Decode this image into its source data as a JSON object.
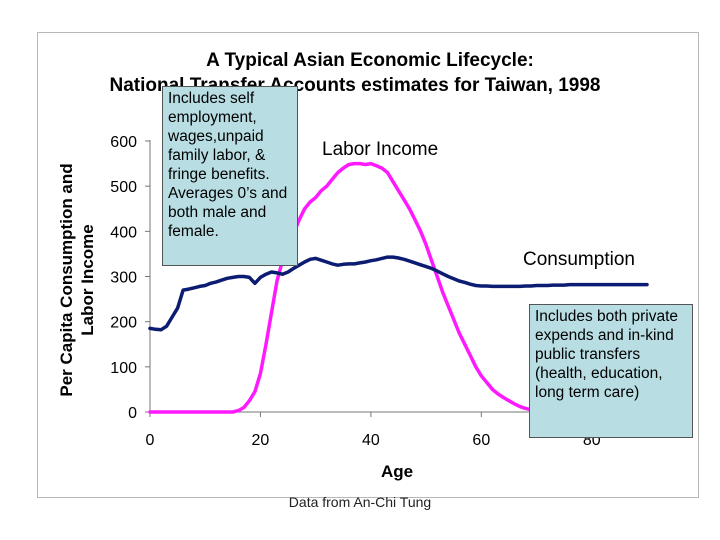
{
  "chart_data": {
    "type": "line",
    "title": "A Typical Asian Economic Lifecycle:",
    "subtitle": "National Transfer Accounts estimates for Taiwan, 1998",
    "xlabel": "Age",
    "ylabel_line1": "Per Capita Consumption and",
    "ylabel_line2": "Labor Income",
    "xlim": [
      0,
      90
    ],
    "ylim": [
      0,
      600
    ],
    "xticks": [
      0,
      20,
      40,
      60,
      80
    ],
    "yticks": [
      0,
      100,
      200,
      300,
      400,
      500,
      600
    ],
    "x": [
      0,
      1,
      2,
      3,
      4,
      5,
      6,
      7,
      8,
      9,
      10,
      11,
      12,
      13,
      14,
      15,
      16,
      17,
      18,
      19,
      20,
      21,
      22,
      23,
      24,
      25,
      26,
      27,
      28,
      29,
      30,
      31,
      32,
      33,
      34,
      35,
      36,
      37,
      38,
      39,
      40,
      41,
      42,
      43,
      44,
      45,
      46,
      47,
      48,
      49,
      50,
      51,
      52,
      53,
      54,
      55,
      56,
      57,
      58,
      59,
      60,
      61,
      62,
      63,
      64,
      65,
      66,
      67,
      68,
      69,
      70,
      71,
      72,
      73,
      74,
      75,
      76,
      77,
      78,
      79,
      80,
      81,
      82,
      83,
      84,
      85,
      86,
      87,
      88,
      89,
      90
    ],
    "series": [
      {
        "name": "Labor Income",
        "label": "Labor Income",
        "color": "#ff19ff",
        "values": [
          0,
          0,
          0,
          0,
          0,
          0,
          0,
          0,
          0,
          0,
          0,
          0,
          0,
          0,
          0,
          0,
          3,
          10,
          25,
          45,
          85,
          150,
          220,
          290,
          335,
          370,
          395,
          425,
          450,
          465,
          475,
          490,
          500,
          515,
          530,
          540,
          548,
          550,
          550,
          548,
          550,
          545,
          540,
          530,
          510,
          490,
          470,
          450,
          425,
          400,
          370,
          335,
          300,
          265,
          235,
          205,
          175,
          150,
          125,
          100,
          80,
          65,
          50,
          40,
          32,
          25,
          18,
          12,
          8,
          5,
          2,
          0,
          0,
          0,
          0,
          0,
          0,
          0,
          0,
          0,
          0,
          0,
          0,
          0,
          0,
          0,
          0,
          0,
          0,
          0,
          0
        ]
      },
      {
        "name": "Consumption",
        "label": "Consumption",
        "color": "#0d1c73",
        "values": [
          185,
          183,
          182,
          190,
          210,
          230,
          270,
          272,
          275,
          278,
          280,
          285,
          288,
          292,
          296,
          298,
          300,
          300,
          298,
          285,
          298,
          305,
          310,
          308,
          305,
          310,
          318,
          325,
          332,
          338,
          340,
          336,
          332,
          328,
          325,
          327,
          328,
          328,
          330,
          332,
          335,
          337,
          340,
          343,
          343,
          341,
          338,
          334,
          330,
          326,
          322,
          318,
          312,
          306,
          300,
          295,
          290,
          287,
          283,
          280,
          279,
          279,
          278,
          278,
          278,
          278,
          278,
          278,
          279,
          279,
          280,
          280,
          280,
          281,
          281,
          281,
          282,
          282,
          282,
          282,
          282,
          282,
          282,
          282,
          282,
          282,
          282,
          282,
          282,
          282,
          282
        ]
      }
    ]
  },
  "callouts": {
    "labor": "Includes self employment, wages,unpaid family labor, & fringe benefits. Averages 0’s and both male and female.",
    "consumption": "Includes both private expends and in-kind public transfers (health, education, long term care)"
  },
  "source_note": "Data from An-Chi Tung"
}
